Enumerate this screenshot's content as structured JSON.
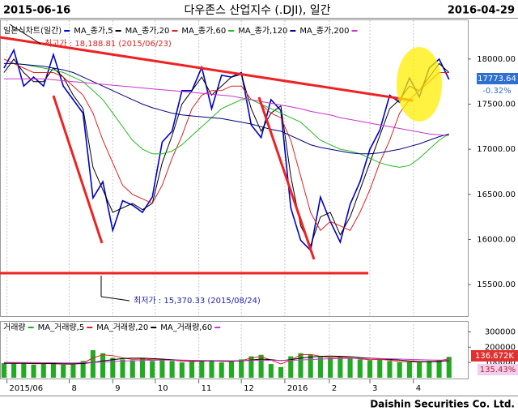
{
  "header": {
    "start_date": "2015-06-16",
    "title": "다우존스 산업지수 (.DJI), 일간",
    "end_date": "2016-04-29"
  },
  "chart_data": [
    {
      "type": "line",
      "x": [
        0,
        1,
        2,
        3,
        4,
        5,
        6,
        7,
        8,
        9,
        10,
        11,
        12,
        13,
        14,
        15,
        16,
        17,
        18,
        19,
        20,
        21,
        22,
        23,
        24,
        25,
        26,
        27,
        28,
        29,
        30,
        31,
        32,
        33,
        34,
        35,
        36,
        37,
        38,
        39,
        40,
        41,
        42,
        43,
        44,
        45
      ],
      "series": [
        {
          "name": "일본식차트(일간)",
          "color": "#0000cc",
          "values": [
            17900,
            18100,
            17700,
            17800,
            17700,
            18050,
            17700,
            17550,
            17400,
            16460,
            16640,
            16100,
            16430,
            16380,
            16300,
            16470,
            17080,
            17200,
            17650,
            17650,
            17910,
            17450,
            17820,
            17800,
            17850,
            17270,
            17130,
            17550,
            17430,
            16350,
            15990,
            15880,
            16470,
            16200,
            15970,
            16390,
            16640,
            17000,
            17210,
            17600,
            17520,
            17790,
            17580,
            17900,
            18000,
            17774
          ]
        },
        {
          "name": "MA_종가,5",
          "color": "#000000",
          "values": [
            17850,
            18000,
            17850,
            17750,
            17750,
            17900,
            17800,
            17600,
            17450,
            16800,
            16550,
            16300,
            16350,
            16400,
            16330,
            16400,
            16850,
            17150,
            17500,
            17650,
            17800,
            17600,
            17700,
            17800,
            17830,
            17450,
            17200,
            17400,
            17480,
            16700,
            16150,
            15930,
            16250,
            16300,
            16050,
            16250,
            16550,
            16850,
            17150,
            17450,
            17550,
            17700,
            17650,
            17800,
            17950,
            17850
          ]
        },
        {
          "name": "MA_종가,20",
          "color": "#e02020",
          "values": [
            18000,
            17950,
            17900,
            17850,
            17850,
            17850,
            17800,
            17700,
            17600,
            17400,
            17100,
            16850,
            16600,
            16500,
            16450,
            16400,
            16600,
            16900,
            17150,
            17450,
            17600,
            17650,
            17650,
            17700,
            17700,
            17550,
            17500,
            17400,
            17350,
            17100,
            16700,
            16300,
            16100,
            16200,
            16150,
            16100,
            16300,
            16550,
            16850,
            17100,
            17400,
            17550,
            17650,
            17750,
            17850,
            17850
          ]
        },
        {
          "name": "MA_종가,60",
          "color": "#22bb22",
          "values": [
            17950,
            17950,
            17940,
            17920,
            17900,
            17880,
            17850,
            17800,
            17750,
            17650,
            17550,
            17400,
            17250,
            17100,
            17000,
            16950,
            16950,
            16980,
            17050,
            17150,
            17250,
            17350,
            17450,
            17500,
            17550,
            17550,
            17500,
            17450,
            17400,
            17350,
            17300,
            17200,
            17100,
            17050,
            17000,
            16980,
            16950,
            16900,
            16850,
            16820,
            16800,
            16820,
            16900,
            17000,
            17100,
            17170
          ]
        },
        {
          "name": "MA_종가,120",
          "color": "#000080",
          "values": [
            17950,
            17950,
            17940,
            17930,
            17920,
            17900,
            17880,
            17850,
            17800,
            17750,
            17700,
            17650,
            17600,
            17550,
            17500,
            17460,
            17430,
            17400,
            17380,
            17370,
            17360,
            17350,
            17340,
            17320,
            17300,
            17280,
            17250,
            17220,
            17200,
            17150,
            17100,
            17050,
            17020,
            17000,
            16980,
            16960,
            16950,
            16950,
            16960,
            16980,
            17000,
            17030,
            17060,
            17100,
            17140,
            17170
          ]
        },
        {
          "name": "MA_종가,200",
          "color": "#cc33cc",
          "values": [
            17780,
            17780,
            17780,
            17780,
            17780,
            17770,
            17760,
            17750,
            17740,
            17730,
            17720,
            17710,
            17700,
            17690,
            17680,
            17670,
            17660,
            17650,
            17640,
            17630,
            17620,
            17610,
            17600,
            17590,
            17570,
            17550,
            17530,
            17510,
            17490,
            17470,
            17450,
            17420,
            17400,
            17380,
            17350,
            17330,
            17310,
            17290,
            17270,
            17250,
            17230,
            17210,
            17190,
            17170,
            17160,
            17150
          ]
        }
      ],
      "xlim": [
        -0.4,
        46.9
      ],
      "ylim": [
        15150,
        18430
      ],
      "yticks": [
        {
          "value": 15500,
          "label": "15500.00"
        },
        {
          "value": 16000,
          "label": "16000.00"
        },
        {
          "value": 16500,
          "label": "16500.00"
        },
        {
          "value": 17000,
          "label": "17000.00"
        },
        {
          "value": 17500,
          "label": "17500.00"
        },
        {
          "value": 18000,
          "label": "18000.00"
        }
      ],
      "high_label": "최고가 : 18,188.81 (2015/06/23)",
      "low_label": "최저가 : 15,370.33 (2015/08/24)",
      "last_value": 17773.64,
      "last_change": {
        "value": -0.32,
        "label": "-0.32%"
      },
      "grid": true
    },
    {
      "type": "bar",
      "x": [
        0,
        1,
        2,
        3,
        4,
        5,
        6,
        7,
        8,
        9,
        10,
        11,
        12,
        13,
        14,
        15,
        16,
        17,
        18,
        19,
        20,
        21,
        22,
        23,
        24,
        25,
        26,
        27,
        28,
        29,
        30,
        31,
        32,
        33,
        34,
        35,
        36,
        37,
        38,
        39,
        40,
        41,
        42,
        43,
        44,
        45
      ],
      "series": [
        {
          "name": "거래량",
          "type": "bar",
          "color": "#22aa22",
          "values": [
            95000,
            90000,
            100000,
            85000,
            95000,
            90000,
            85000,
            90000,
            110000,
            180000,
            160000,
            130000,
            120000,
            115000,
            130000,
            110000,
            120000,
            110000,
            100000,
            105000,
            110000,
            115000,
            100000,
            105000,
            120000,
            140000,
            150000,
            90000,
            70000,
            140000,
            160000,
            150000,
            135000,
            130000,
            140000,
            125000,
            120000,
            115000,
            125000,
            110000,
            100000,
            105000,
            100000,
            110000,
            115000,
            136672
          ]
        },
        {
          "name": "MA_거래량,5",
          "type": "line",
          "color": "#e02020",
          "values": [
            95000,
            93000,
            95000,
            92000,
            93000,
            92000,
            89000,
            88000,
            95000,
            130000,
            150000,
            145000,
            130000,
            120000,
            122000,
            118000,
            118000,
            115000,
            108000,
            106000,
            108000,
            112000,
            107000,
            106000,
            112000,
            128000,
            140000,
            115000,
            90000,
            115000,
            150000,
            152000,
            140000,
            132000,
            135000,
            130000,
            123000,
            118000,
            120000,
            115000,
            105000,
            104000,
            102000,
            105000,
            110000,
            125000
          ]
        },
        {
          "name": "MA_거래량,20",
          "type": "line",
          "color": "#000000",
          "values": [
            95000,
            95000,
            95000,
            94000,
            94000,
            93000,
            92000,
            91000,
            93000,
            100000,
            110000,
            118000,
            125000,
            128000,
            128000,
            125000,
            122000,
            118000,
            114000,
            112000,
            110000,
            110000,
            110000,
            108000,
            110000,
            116000,
            122000,
            118000,
            112000,
            118000,
            128000,
            135000,
            140000,
            142000,
            140000,
            138000,
            132000,
            128000,
            125000,
            120000,
            115000,
            110000,
            106000,
            104000,
            106000,
            112000
          ]
        },
        {
          "name": "MA_거래량,60",
          "type": "line",
          "color": "#cc33cc",
          "values": [
            100000,
            100000,
            99000,
            99000,
            98000,
            98000,
            97000,
            97000,
            98000,
            100000,
            103000,
            106000,
            109000,
            111000,
            113000,
            114000,
            115000,
            115000,
            115000,
            114000,
            113000,
            112000,
            112000,
            111000,
            112000,
            113000,
            114000,
            114000,
            113000,
            114000,
            116000,
            119000,
            122000,
            124000,
            126000,
            127000,
            127000,
            126000,
            125000,
            124000,
            122000,
            120000,
            118000,
            116000,
            115000,
            115000
          ]
        }
      ],
      "xlim": [
        -0.4,
        46.9
      ],
      "ylim": [
        0,
        350000
      ],
      "yticks": [
        100000,
        200000,
        300000
      ],
      "xticks": [
        {
          "value": 0.3,
          "label": "2015/06"
        },
        {
          "value": 6.6,
          "label": "8"
        },
        {
          "value": 11,
          "label": "9"
        },
        {
          "value": 15.3,
          "label": "10"
        },
        {
          "value": 19.7,
          "label": "11"
        },
        {
          "value": 24,
          "label": "12"
        },
        {
          "value": 28.4,
          "label": "2016"
        },
        {
          "value": 32.9,
          "label": "2"
        },
        {
          "value": 37,
          "label": "3"
        },
        {
          "value": 41.4,
          "label": "4"
        }
      ],
      "last_volume": {
        "value": 136672,
        "label": "136.672K"
      },
      "volume_ratio": {
        "value": 135.43,
        "label": "135.43%"
      },
      "grid": true
    }
  ],
  "footer": "Daishin Securities Co. Ltd."
}
